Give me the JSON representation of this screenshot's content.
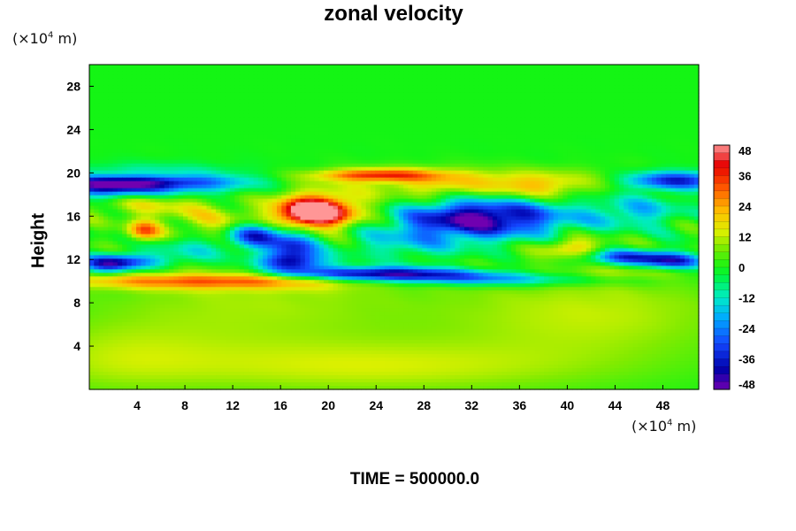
{
  "chart_data": {
    "type": "heatmap",
    "title": "zonal velocity",
    "ylabel": "Height",
    "xlabel": "",
    "x_unit": "(×10⁴ m)",
    "y_unit": "(×10⁴ m)",
    "footer": "TIME = 500000.0",
    "xlim": [
      0,
      51
    ],
    "ylim": [
      0,
      30
    ],
    "x_ticks": [
      4,
      8,
      12,
      16,
      20,
      24,
      28,
      32,
      36,
      40,
      44,
      48
    ],
    "y_ticks": [
      4,
      8,
      12,
      16,
      20,
      24,
      28
    ],
    "colorbar": {
      "ticks": [
        48,
        36,
        24,
        12,
        0,
        -12,
        -24,
        -36,
        -48
      ],
      "range": [
        -48,
        48
      ],
      "levels": 32
    },
    "features": [
      {
        "x": 14,
        "y": 8,
        "sx": 10,
        "sy": 3.5,
        "v": 10
      },
      {
        "x": 42,
        "y": 7,
        "sx": 9,
        "sy": 3,
        "v": 12
      },
      {
        "x": 24,
        "y": 2,
        "sx": 14,
        "sy": 1.8,
        "v": 12
      },
      {
        "x": 2,
        "y": 3,
        "sx": 6,
        "sy": 2.5,
        "v": 8
      },
      {
        "x": 6,
        "y": 19.2,
        "sx": 5,
        "sy": 0.8,
        "v": -42
      },
      {
        "x": 1,
        "y": 18.8,
        "sx": 3,
        "sy": 0.8,
        "v": -30
      },
      {
        "x": 49,
        "y": 19.3,
        "sx": 3,
        "sy": 0.6,
        "v": -38
      },
      {
        "x": 24,
        "y": 19.8,
        "sx": 3.5,
        "sy": 0.4,
        "v": 30
      },
      {
        "x": 33,
        "y": 19.4,
        "sx": 9,
        "sy": 0.8,
        "v": 12
      },
      {
        "x": 18.5,
        "y": 16.3,
        "sx": 1.8,
        "sy": 0.8,
        "v": 45
      },
      {
        "x": 19.5,
        "y": 16.5,
        "sx": 3,
        "sy": 1.4,
        "v": 30
      },
      {
        "x": 5,
        "y": 17.2,
        "sx": 4,
        "sy": 1,
        "v": 14
      },
      {
        "x": 10,
        "y": 15.3,
        "sx": 2.5,
        "sy": 1,
        "v": 12
      },
      {
        "x": 29,
        "y": 18.2,
        "sx": 3,
        "sy": 1.2,
        "v": 14
      },
      {
        "x": 4.5,
        "y": 14.6,
        "sx": 1,
        "sy": 0.7,
        "v": 28
      },
      {
        "x": 37,
        "y": 18.5,
        "sx": 3,
        "sy": 0.8,
        "v": 16
      },
      {
        "x": 34,
        "y": 15.8,
        "sx": 5,
        "sy": 1.2,
        "v": -32
      },
      {
        "x": 31,
        "y": 16,
        "sx": 4,
        "sy": 1.5,
        "v": -20
      },
      {
        "x": 14,
        "y": 14.3,
        "sx": 1.5,
        "sy": 0.8,
        "v": -34
      },
      {
        "x": 17,
        "y": 13,
        "sx": 1.5,
        "sy": 1.2,
        "v": -36
      },
      {
        "x": 17,
        "y": 11.7,
        "sx": 2.5,
        "sy": 0.6,
        "v": -25
      },
      {
        "x": 3,
        "y": 11.8,
        "sx": 2.5,
        "sy": 0.5,
        "v": -28
      },
      {
        "x": 1.5,
        "y": 11.5,
        "sx": 1.5,
        "sy": 0.6,
        "v": -24
      },
      {
        "x": 24,
        "y": 10.7,
        "sx": 5.5,
        "sy": 0.45,
        "v": -44
      },
      {
        "x": 34,
        "y": 10.2,
        "sx": 8,
        "sy": 0.45,
        "v": -26
      },
      {
        "x": 45,
        "y": 12.2,
        "sx": 3,
        "sy": 0.5,
        "v": -34
      },
      {
        "x": 49,
        "y": 11.8,
        "sx": 2,
        "sy": 0.5,
        "v": -30
      },
      {
        "x": 10,
        "y": 10,
        "sx": 9,
        "sy": 0.5,
        "v": 26
      },
      {
        "x": 40.5,
        "y": 13,
        "sx": 2,
        "sy": 0.8,
        "v": 20
      },
      {
        "x": 46,
        "y": 16.5,
        "sx": 2.5,
        "sy": 1,
        "v": -16
      },
      {
        "x": 9,
        "y": 13,
        "sx": 3,
        "sy": 1,
        "v": -14
      },
      {
        "x": 43,
        "y": 10.5,
        "sx": 4,
        "sy": 0.5,
        "v": 12
      },
      {
        "x": 4,
        "y": 19.8,
        "sx": 5,
        "sy": 0.4,
        "v": 18
      },
      {
        "x": 26,
        "y": 13.5,
        "sx": 4,
        "sy": 1.2,
        "v": -14
      }
    ]
  }
}
